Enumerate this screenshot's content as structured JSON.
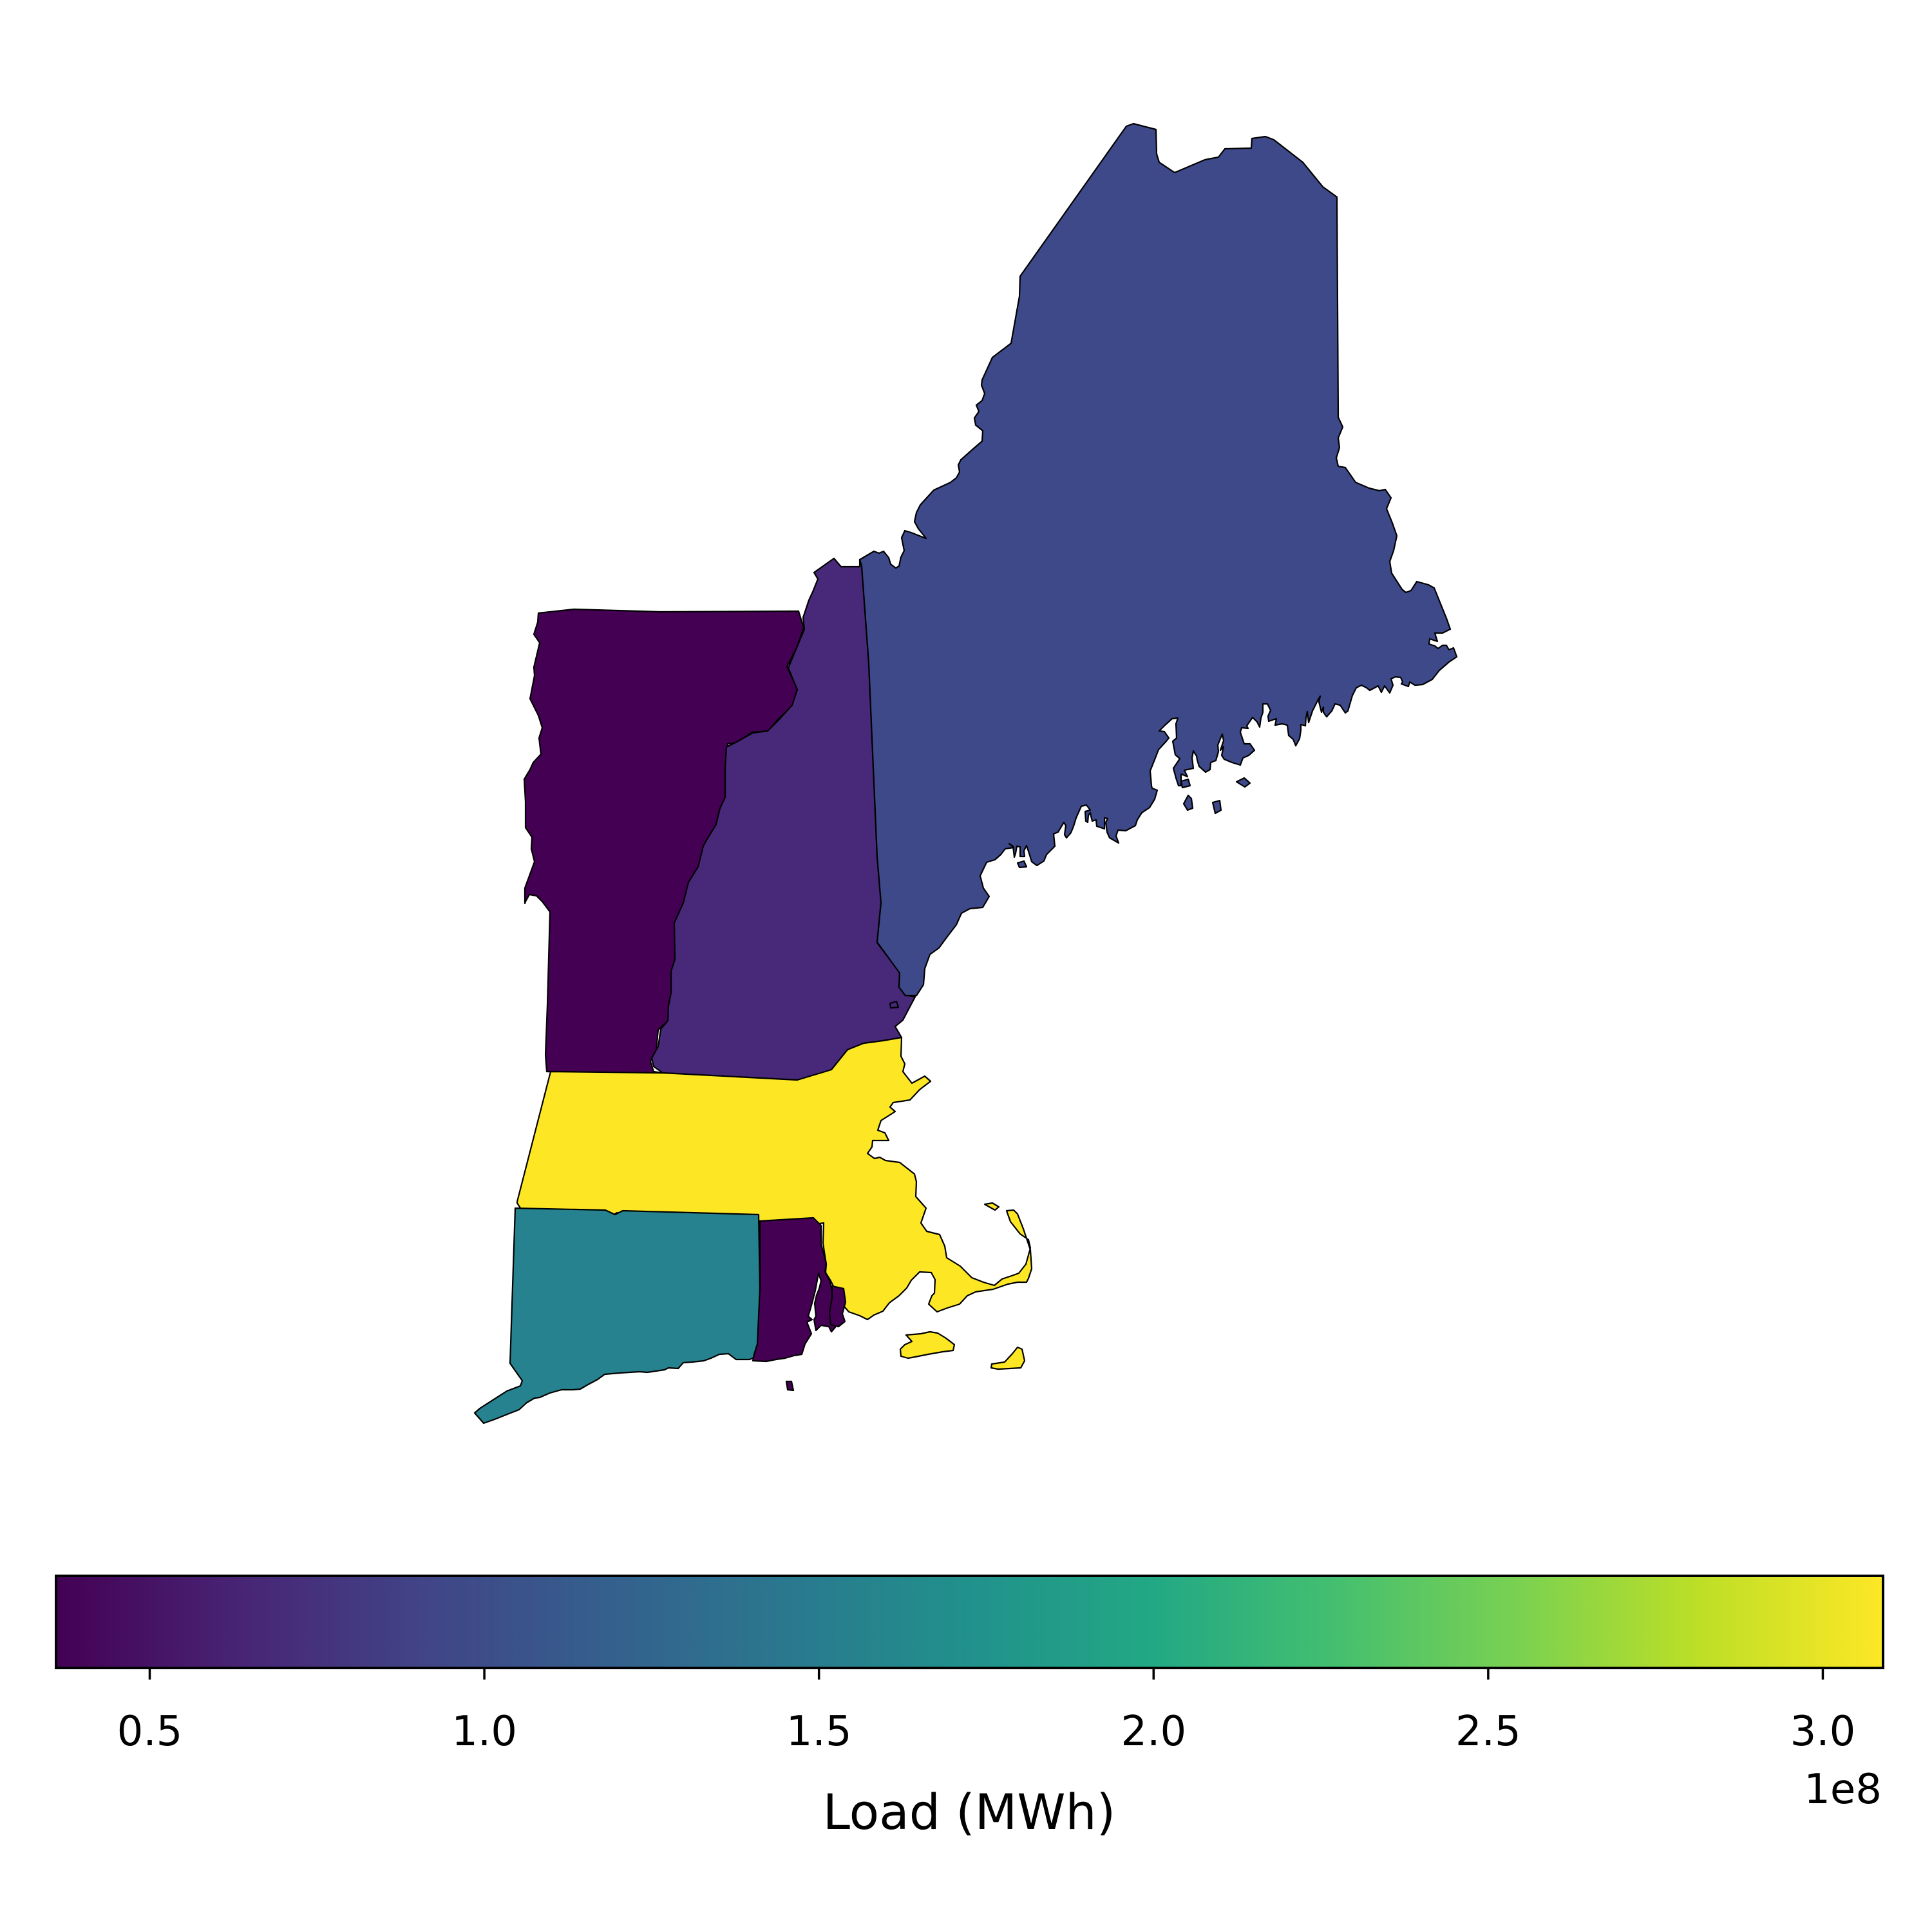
{
  "chart_data": {
    "type": "choropleth",
    "regions": [
      {
        "name": "Vermont",
        "value": 37000000.0,
        "color": "#440154"
      },
      {
        "name": "New Hampshire",
        "value": 75000000.0,
        "color": "#482878"
      },
      {
        "name": "Maine",
        "value": 100000000.0,
        "color": "#3e4989"
      },
      {
        "name": "Massachusetts",
        "value": 308000000.0,
        "color": "#fde725"
      },
      {
        "name": "Connecticut",
        "value": 142000000.0,
        "color": "#26828e"
      },
      {
        "name": "Rhode Island",
        "value": 40000000.0,
        "color": "#440154"
      }
    ],
    "colorbar": {
      "label": "Load (MWh)",
      "range": [
        0.36,
        3.09
      ],
      "ticks": [
        0.5,
        1.0,
        1.5,
        2.0,
        2.5,
        3.0
      ],
      "tick_labels": [
        "0.5",
        "1.0",
        "1.5",
        "2.0",
        "2.5",
        "3.0"
      ],
      "offset_text": "1e8",
      "colormap": "viridis",
      "orientation": "horizontal",
      "placement": "bottom"
    }
  }
}
